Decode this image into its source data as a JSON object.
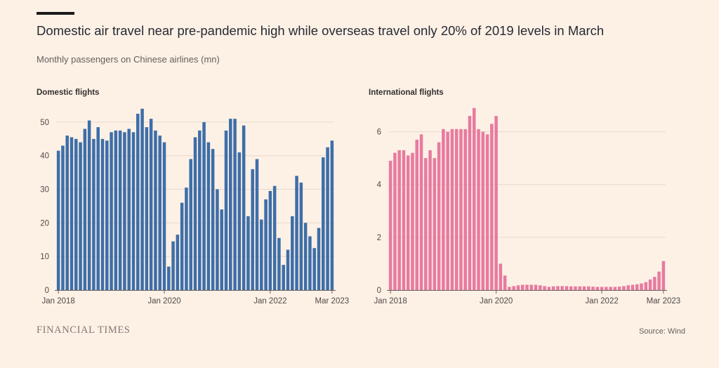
{
  "header": {
    "title": "Domestic air travel near pre-pandemic high while overseas travel only 20% of 2019 levels in March",
    "subtitle": "Monthly passengers on Chinese airlines (mn)"
  },
  "footer": {
    "brand": "FINANCIAL TIMES",
    "source": "Source: Wind"
  },
  "colors": {
    "domestic": "#3e6ea8",
    "international": "#e87aa0",
    "background": "#fdf1e6"
  },
  "chart_data": [
    {
      "type": "bar",
      "title": "Domestic flights",
      "color": "#3e6ea8",
      "x_start": "2018-01",
      "x_ticks": [
        "Jan 2018",
        "Jan 2020",
        "Jan 2022",
        "Mar 2023"
      ],
      "ylim": [
        0,
        55
      ],
      "yticks": [
        0,
        10,
        20,
        30,
        40,
        50
      ],
      "grid": true,
      "values": [
        41.5,
        43,
        46,
        45.5,
        45,
        44,
        48,
        50.5,
        45,
        48.5,
        45,
        44.5,
        47,
        47.5,
        47.5,
        47,
        48,
        47,
        52.5,
        54,
        48.5,
        51,
        47.5,
        46,
        44,
        7,
        14.5,
        16.5,
        26,
        30.5,
        39,
        45.5,
        47.5,
        50,
        44,
        42,
        30,
        24,
        47.5,
        51,
        51,
        41,
        49,
        22,
        36,
        39,
        21,
        27,
        29.5,
        31,
        15.5,
        7.5,
        12,
        22,
        34,
        32,
        20,
        16,
        12.5,
        18.5,
        39.5,
        42.5,
        44.5
      ]
    },
    {
      "type": "bar",
      "title": "International flights",
      "color": "#e87aa0",
      "x_start": "2018-01",
      "x_ticks": [
        "Jan 2018",
        "Jan 2020",
        "Jan 2022",
        "Mar 2023"
      ],
      "ylim": [
        0,
        7
      ],
      "yticks": [
        0,
        2,
        4,
        6
      ],
      "grid": true,
      "values": [
        4.9,
        5.2,
        5.3,
        5.3,
        5.1,
        5.2,
        5.7,
        5.9,
        5.0,
        5.3,
        5.0,
        5.6,
        6.1,
        6.0,
        6.1,
        6.1,
        6.1,
        6.1,
        6.6,
        6.9,
        6.1,
        6.0,
        5.9,
        6.3,
        6.6,
        1.0,
        0.55,
        0.12,
        0.15,
        0.18,
        0.2,
        0.2,
        0.2,
        0.2,
        0.18,
        0.15,
        0.12,
        0.14,
        0.15,
        0.15,
        0.15,
        0.14,
        0.14,
        0.14,
        0.14,
        0.14,
        0.13,
        0.12,
        0.12,
        0.12,
        0.12,
        0.12,
        0.13,
        0.15,
        0.18,
        0.2,
        0.22,
        0.25,
        0.3,
        0.4,
        0.5,
        0.7,
        1.1
      ]
    }
  ]
}
